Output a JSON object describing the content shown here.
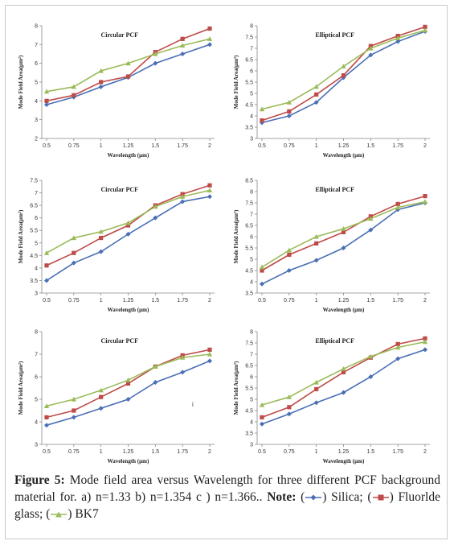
{
  "colors": {
    "silica": "#4a6fb5",
    "fluoride": "#be4b48",
    "bk7": "#9bbb59"
  },
  "caption": {
    "figure_label": "Figure 5:",
    "text": " Mode field area versus Wavelength for three different PCF background material for. a) n=1.33  b) n=1.354  c ) n=1.366..",
    "note_label": "Note:",
    "legend_silica": "Silica;",
    "legend_fluoride": "Fluorlde glass;",
    "legend_bk7": "BK7"
  },
  "stray_mark": "i",
  "chart_data": [
    {
      "type": "line",
      "title": "Circular PCF",
      "xlabel": "Wavelength (µm)",
      "ylabel": "Mode Field Area(µm²)",
      "x_tick_labels": [
        "0.5",
        "0.75",
        "1",
        "1.25",
        "1.5",
        "1.75",
        "2"
      ],
      "y_tick_labels": [
        "2",
        "3",
        "4",
        "5",
        "6",
        "7",
        "8"
      ],
      "ylim": [
        2,
        8
      ],
      "series": [
        {
          "color_key": "silica",
          "values": [
            3.8,
            4.2,
            4.75,
            5.25,
            6.0,
            6.5,
            7.0
          ]
        },
        {
          "color_key": "fluoride",
          "values": [
            4.0,
            4.3,
            5.0,
            5.3,
            6.6,
            7.3,
            7.85
          ]
        },
        {
          "color_key": "bk7",
          "values": [
            4.5,
            4.75,
            5.6,
            6.0,
            6.5,
            6.95,
            7.3
          ]
        }
      ]
    },
    {
      "type": "line",
      "title": "Elliptical PCF",
      "xlabel": "Wavelength (µm)",
      "ylabel": "Mode Field Area(µm²)",
      "x_tick_labels": [
        "0.5",
        "0.75",
        "1",
        "1.25",
        "1.5",
        "1.75",
        "2"
      ],
      "y_tick_labels": [
        "3",
        "3.5",
        "4",
        "4.5",
        "5",
        "5.5",
        "6",
        "6.5",
        "7",
        "7.5",
        "8"
      ],
      "ylim": [
        3,
        8
      ],
      "series": [
        {
          "color_key": "silica",
          "values": [
            3.7,
            4.0,
            4.6,
            5.7,
            6.7,
            7.3,
            7.75
          ]
        },
        {
          "color_key": "fluoride",
          "values": [
            3.8,
            4.2,
            4.95,
            5.8,
            7.1,
            7.55,
            7.95
          ]
        },
        {
          "color_key": "bk7",
          "values": [
            4.3,
            4.6,
            5.3,
            6.2,
            7.0,
            7.45,
            7.8
          ]
        }
      ]
    },
    {
      "type": "line",
      "title": "Circular PCF",
      "xlabel": "Wavelength (µm)",
      "ylabel": "Mode Field Area(µm²)",
      "x_tick_labels": [
        "0.5",
        "0.75",
        "1",
        "1.25",
        "1.5",
        "1.75",
        "2"
      ],
      "y_tick_labels": [
        "3",
        "3.5",
        "4",
        "4.5",
        "5",
        "5.5",
        "6",
        "6.5",
        "7",
        "7.5"
      ],
      "ylim": [
        3,
        7.5
      ],
      "series": [
        {
          "color_key": "silica",
          "values": [
            3.5,
            4.2,
            4.65,
            5.35,
            6.0,
            6.65,
            6.85
          ]
        },
        {
          "color_key": "fluoride",
          "values": [
            4.1,
            4.6,
            5.2,
            5.7,
            6.5,
            6.95,
            7.3
          ]
        },
        {
          "color_key": "bk7",
          "values": [
            4.6,
            5.2,
            5.45,
            5.8,
            6.45,
            6.85,
            7.1
          ]
        }
      ]
    },
    {
      "type": "line",
      "title": "Elliptical PCF",
      "xlabel": "Wavelength (µm)",
      "ylabel": "Mode Field Area(µm²)",
      "x_tick_labels": [
        "0.5",
        "0.75",
        "1",
        "1.25",
        "1.5",
        "1.75",
        "2"
      ],
      "y_tick_labels": [
        "3.5",
        "4",
        "4.5",
        "5",
        "5.5",
        "6",
        "6.5",
        "7",
        "7.5",
        "8",
        "8.5"
      ],
      "ylim": [
        3.5,
        8.5
      ],
      "series": [
        {
          "color_key": "silica",
          "values": [
            3.9,
            4.5,
            4.95,
            5.5,
            6.3,
            7.2,
            7.5
          ]
        },
        {
          "color_key": "fluoride",
          "values": [
            4.5,
            5.2,
            5.7,
            6.2,
            6.9,
            7.45,
            7.8
          ]
        },
        {
          "color_key": "bk7",
          "values": [
            4.65,
            5.4,
            6.0,
            6.35,
            6.8,
            7.3,
            7.55
          ]
        }
      ]
    },
    {
      "type": "line",
      "title": "Circular PCF",
      "xlabel": "Wavelength (µm)",
      "ylabel": "Mode Field Area(µm²)",
      "x_tick_labels": [
        "0.5",
        "0.75",
        "1",
        "1.25",
        "1.5",
        "1.75",
        "2"
      ],
      "y_tick_labels": [
        "3",
        "4",
        "5",
        "6",
        "7",
        "8"
      ],
      "ylim": [
        3,
        8
      ],
      "series": [
        {
          "color_key": "silica",
          "values": [
            3.85,
            4.2,
            4.6,
            5.0,
            5.75,
            6.2,
            6.7
          ]
        },
        {
          "color_key": "fluoride",
          "values": [
            4.2,
            4.5,
            5.1,
            5.7,
            6.45,
            6.95,
            7.2
          ]
        },
        {
          "color_key": "bk7",
          "values": [
            4.7,
            5.0,
            5.4,
            5.85,
            6.45,
            6.85,
            7.0
          ]
        }
      ]
    },
    {
      "type": "line",
      "title": "Elliptical PCF",
      "xlabel": "Wavelength (µm)",
      "ylabel": "Mode Field Area(µm²)",
      "x_tick_labels": [
        "0.5",
        "0.75",
        "1",
        "1.25",
        "1.5",
        "1.75",
        "2"
      ],
      "y_tick_labels": [
        "3",
        "3.5",
        "4",
        "4.5",
        "5",
        "5.5",
        "6",
        "6.5",
        "7",
        "7.5",
        "8"
      ],
      "ylim": [
        3,
        8
      ],
      "series": [
        {
          "color_key": "silica",
          "values": [
            3.9,
            4.35,
            4.85,
            5.3,
            6.0,
            6.8,
            7.2
          ]
        },
        {
          "color_key": "fluoride",
          "values": [
            4.2,
            4.65,
            5.45,
            6.2,
            6.85,
            7.45,
            7.7
          ]
        },
        {
          "color_key": "bk7",
          "values": [
            4.75,
            5.1,
            5.75,
            6.35,
            6.9,
            7.3,
            7.55
          ]
        }
      ]
    }
  ]
}
